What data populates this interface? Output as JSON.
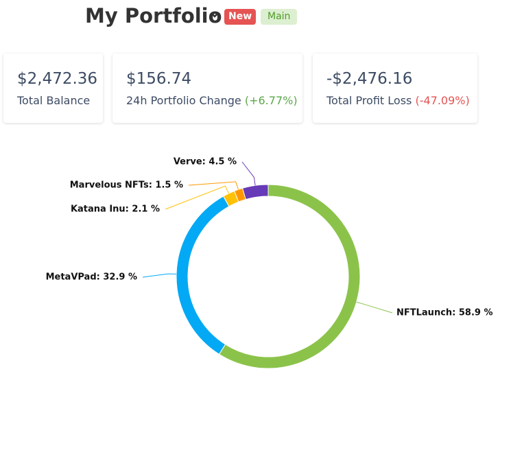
{
  "header": {
    "title": "My Portfolio",
    "badges": [
      "New",
      "Main"
    ]
  },
  "cards": [
    {
      "value": "$2,472.36",
      "label": "Total Balance"
    },
    {
      "value": "$156.74",
      "label": "24h Portfolio Change",
      "change": "(+6.77%)"
    },
    {
      "value": "-$2,476.16",
      "label": "Total Profit Loss",
      "change": "(-47.09%)"
    }
  ],
  "chart_data": {
    "type": "donut",
    "labels": [
      "NFTLaunch: 58.9 %",
      "MetaVPad: 32.9 %",
      "Katana Inu: 2.1 %",
      "Marvelous NFTs: 1.5 %",
      "Verve: 4.5 %"
    ],
    "values": [
      58.9,
      32.9,
      2.1,
      1.5,
      4.5
    ],
    "colors": [
      "#8bc34a",
      "#03a9f4",
      "#ffc107",
      "#ff9800",
      "#673ab7"
    ]
  }
}
